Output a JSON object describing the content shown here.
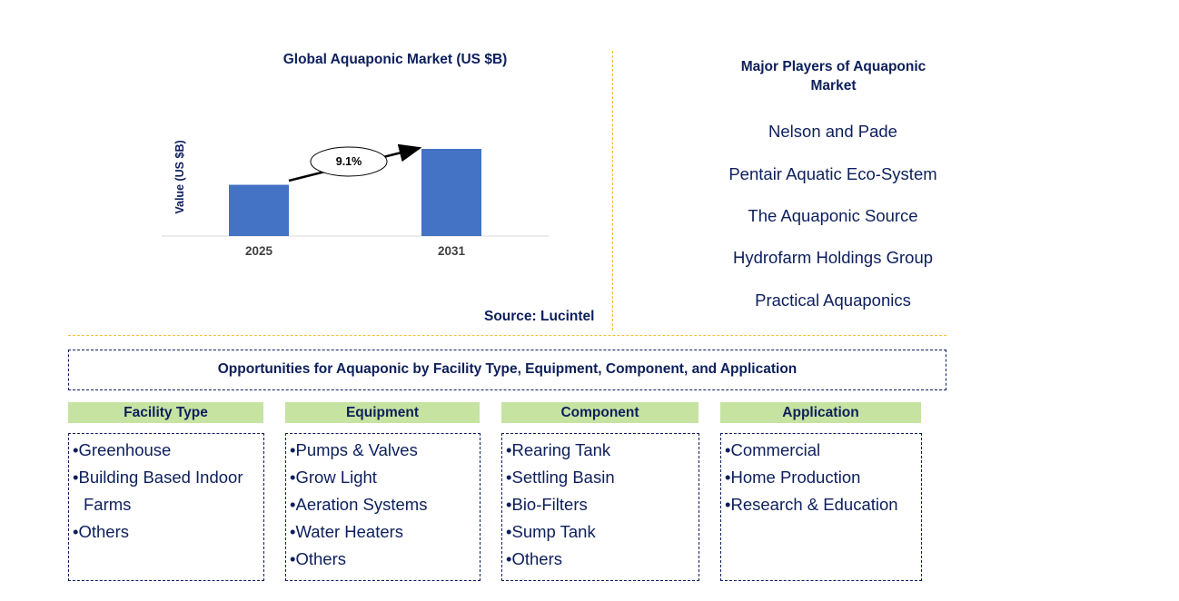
{
  "chart_data": {
    "type": "bar",
    "title": "Global Aquaponic Market (US $B)",
    "ylabel": "Value (US $B)",
    "xlabel": "",
    "categories": [
      "2025",
      "2031"
    ],
    "values": [
      1.0,
      1.7
    ],
    "annotation": "9.1%",
    "bar_color": "#4472c4",
    "source": "Source: Lucintel"
  },
  "players": {
    "title": "Major Players of Aquaponic Market",
    "items": [
      "Nelson and Pade",
      "Pentair Aquatic Eco-System",
      "The Aquaponic Source",
      "Hydrofarm Holdings Group",
      "Practical Aquaponics"
    ]
  },
  "opportunities": {
    "title": "Opportunities for Aquaponic by Facility Type, Equipment, Component, and Application",
    "header_color": "#c6e3a2",
    "segments": [
      {
        "name": "Facility Type",
        "items": [
          "Greenhouse",
          "Building Based Indoor Farms",
          "Others"
        ]
      },
      {
        "name": "Equipment",
        "items": [
          "Pumps & Valves",
          "Grow Light",
          "Aeration Systems",
          "Water Heaters",
          "Others"
        ]
      },
      {
        "name": "Component",
        "items": [
          "Rearing Tank",
          "Settling Basin",
          "Bio-Filters",
          "Sump Tank",
          "Others"
        ]
      },
      {
        "name": "Application",
        "items": [
          "Commercial",
          "Home Production",
          "Research & Education"
        ]
      }
    ]
  }
}
